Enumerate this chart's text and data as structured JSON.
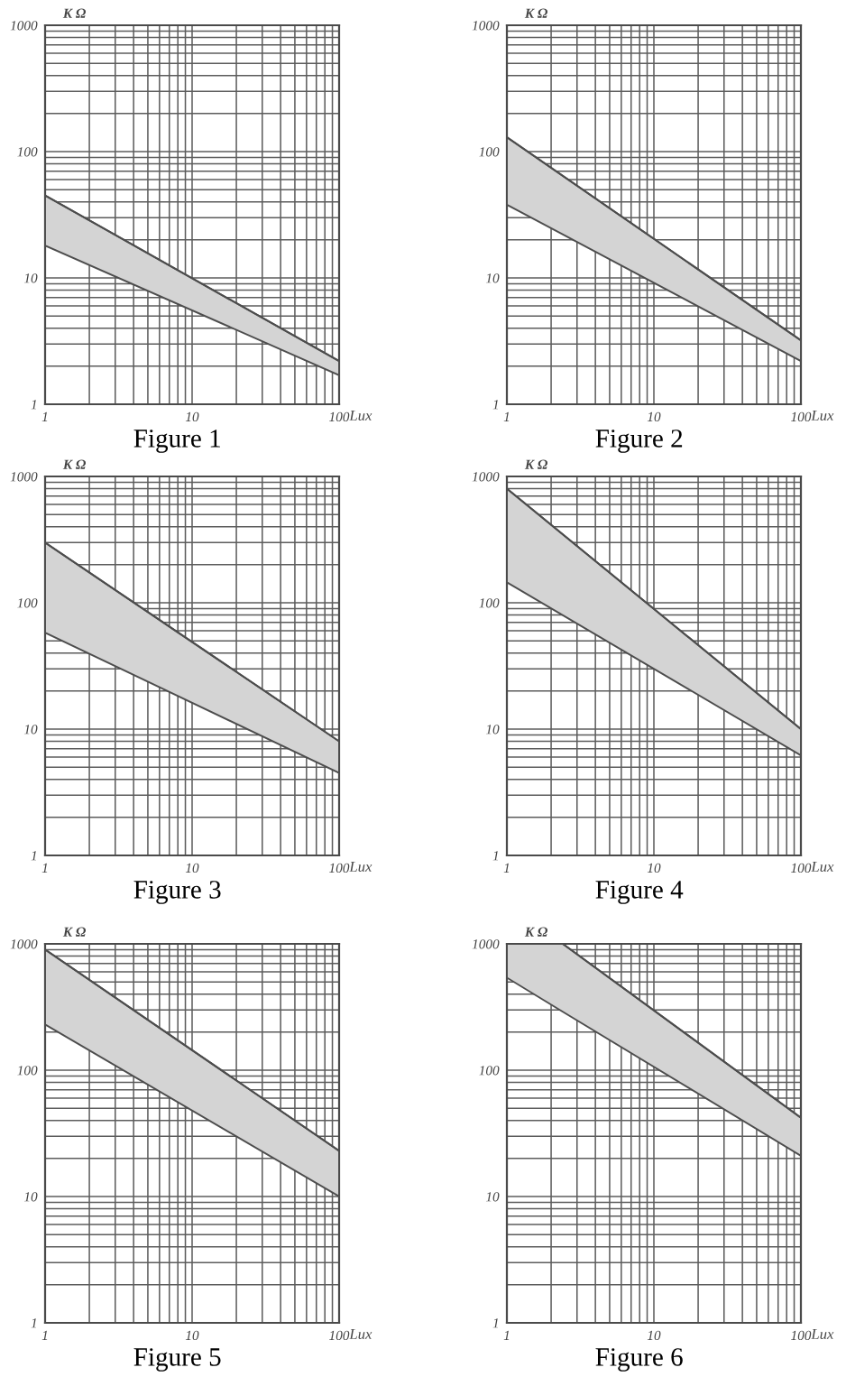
{
  "chart_data": [
    {
      "type": "line",
      "title": "Figure 1",
      "xlabel": "Lux",
      "ylabel": "K Ω",
      "x": [
        1,
        100
      ],
      "series": [
        {
          "color": "#4d4d4d",
          "values": [
            45,
            2.2
          ],
          "lower": [
            18,
            1.7
          ],
          "upper": [
            45,
            2.2
          ]
        }
      ],
      "log": "xy",
      "xlim": [
        1,
        100
      ],
      "ylim": [
        1,
        1000
      ],
      "xticks": [
        1,
        10,
        100
      ],
      "yticks": [
        1,
        10,
        100,
        1000
      ],
      "grid": true
    },
    {
      "type": "line",
      "title": "Figure 2",
      "xlabel": "Lux",
      "ylabel": "K Ω",
      "x": [
        1,
        100
      ],
      "series": [
        {
          "color": "#4d4d4d",
          "values": [
            130,
            3.2
          ],
          "lower": [
            38,
            2.2
          ],
          "upper": [
            130,
            3.2
          ]
        }
      ],
      "log": "xy",
      "xlim": [
        1,
        100
      ],
      "ylim": [
        1,
        1000
      ],
      "xticks": [
        1,
        10,
        100
      ],
      "yticks": [
        1,
        10,
        100,
        1000
      ],
      "grid": true
    },
    {
      "type": "line",
      "title": "Figure 3",
      "xlabel": "Lux",
      "ylabel": "K Ω",
      "x": [
        1,
        100
      ],
      "series": [
        {
          "color": "#4d4d4d",
          "values": [
            300,
            8
          ],
          "lower": [
            58,
            4.5
          ],
          "upper": [
            300,
            8
          ]
        }
      ],
      "log": "xy",
      "xlim": [
        1,
        100
      ],
      "ylim": [
        1,
        1000
      ],
      "xticks": [
        1,
        10,
        100
      ],
      "yticks": [
        1,
        10,
        100,
        1000
      ],
      "grid": true
    },
    {
      "type": "line",
      "title": "Figure 4",
      "xlabel": "Lux",
      "ylabel": "K Ω",
      "x": [
        1,
        100
      ],
      "series": [
        {
          "color": "#4d4d4d",
          "values": [
            800,
            10
          ],
          "lower": [
            145,
            6.2
          ],
          "upper": [
            800,
            10
          ]
        }
      ],
      "log": "xy",
      "xlim": [
        1,
        100
      ],
      "ylim": [
        1,
        1000
      ],
      "xticks": [
        1,
        10,
        100
      ],
      "yticks": [
        1,
        10,
        100,
        1000
      ],
      "grid": true
    },
    {
      "type": "line",
      "title": "Figure 5",
      "xlabel": "Lux",
      "ylabel": "K Ω",
      "x": [
        1,
        100
      ],
      "series": [
        {
          "color": "#4d4d4d",
          "values": [
            900,
            23
          ],
          "lower": [
            230,
            10
          ],
          "upper": [
            900,
            23
          ]
        }
      ],
      "log": "xy",
      "xlim": [
        1,
        100
      ],
      "ylim": [
        1,
        1000
      ],
      "xticks": [
        1,
        10,
        100
      ],
      "yticks": [
        1,
        10,
        100,
        1000
      ],
      "grid": true
    },
    {
      "type": "line",
      "title": "Figure 6",
      "xlabel": "Lux",
      "ylabel": "K Ω",
      "x": [
        1,
        2.4,
        100
      ],
      "series": [
        {
          "color": "#4d4d4d",
          "values": [
            1000,
            1000,
            42
          ],
          "lower": [
            540,
            290,
            21
          ],
          "upper": [
            1000,
            1000,
            42
          ]
        }
      ],
      "log": "xy",
      "xlim": [
        1,
        100
      ],
      "ylim": [
        1,
        1000
      ],
      "xticks": [
        1,
        10,
        100
      ],
      "yticks": [
        1,
        10,
        100,
        1000
      ],
      "grid": true
    }
  ]
}
